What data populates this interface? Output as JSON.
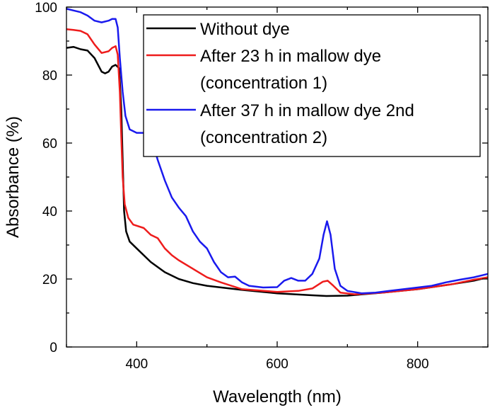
{
  "chart_data": {
    "type": "line",
    "xlabel": "Wavelength (nm)",
    "ylabel": "Absorbance (%)",
    "xlim": [
      300,
      900
    ],
    "ylim": [
      0,
      100
    ],
    "x_ticks": [
      400,
      600,
      800
    ],
    "y_ticks": [
      0,
      20,
      40,
      60,
      80,
      100
    ],
    "grid": false,
    "legend_placement": "top-right",
    "series": [
      {
        "name": "Without dye",
        "color": "#000000",
        "points": [
          [
            300,
            88
          ],
          [
            310,
            88.3
          ],
          [
            320,
            87.6
          ],
          [
            330,
            87.2
          ],
          [
            340,
            85
          ],
          [
            350,
            81
          ],
          [
            355,
            80.5
          ],
          [
            360,
            81
          ],
          [
            365,
            82.5
          ],
          [
            370,
            83
          ],
          [
            375,
            82
          ],
          [
            378,
            70
          ],
          [
            380,
            55
          ],
          [
            382,
            40
          ],
          [
            385,
            34
          ],
          [
            390,
            31
          ],
          [
            400,
            29
          ],
          [
            420,
            25
          ],
          [
            440,
            22
          ],
          [
            460,
            20
          ],
          [
            480,
            18.8
          ],
          [
            500,
            18
          ],
          [
            550,
            16.8
          ],
          [
            600,
            15.8
          ],
          [
            650,
            15.2
          ],
          [
            670,
            15.0
          ],
          [
            700,
            15.1
          ],
          [
            750,
            16
          ],
          [
            800,
            17
          ],
          [
            850,
            18.5
          ],
          [
            880,
            19.5
          ],
          [
            900,
            20.5
          ]
        ]
      },
      {
        "name": "After 23 h in mallow dye\n(concentration 1)",
        "color": "#ee1c1c",
        "points": [
          [
            300,
            93.5
          ],
          [
            310,
            93.3
          ],
          [
            320,
            93
          ],
          [
            330,
            92
          ],
          [
            340,
            89
          ],
          [
            350,
            86.5
          ],
          [
            360,
            87
          ],
          [
            365,
            88
          ],
          [
            370,
            88.5
          ],
          [
            373,
            86
          ],
          [
            376,
            75
          ],
          [
            378,
            62
          ],
          [
            380,
            50
          ],
          [
            383,
            42
          ],
          [
            388,
            38
          ],
          [
            395,
            36
          ],
          [
            410,
            35
          ],
          [
            420,
            33
          ],
          [
            430,
            32
          ],
          [
            440,
            29
          ],
          [
            450,
            27
          ],
          [
            460,
            25.5
          ],
          [
            480,
            23
          ],
          [
            500,
            20.5
          ],
          [
            520,
            19
          ],
          [
            550,
            17
          ],
          [
            600,
            16.2
          ],
          [
            630,
            16.5
          ],
          [
            650,
            17.2
          ],
          [
            665,
            19.2
          ],
          [
            672,
            19.5
          ],
          [
            680,
            18
          ],
          [
            690,
            16
          ],
          [
            710,
            15.5
          ],
          [
            750,
            16
          ],
          [
            800,
            17
          ],
          [
            850,
            18.5
          ],
          [
            880,
            19.8
          ],
          [
            900,
            20.5
          ]
        ]
      },
      {
        "name": "After 37 h in mallow dye 2nd\n(concentration 2)",
        "color": "#1a1aee",
        "points": [
          [
            300,
            99.5
          ],
          [
            310,
            99
          ],
          [
            320,
            98.5
          ],
          [
            330,
            97.5
          ],
          [
            340,
            96
          ],
          [
            350,
            95.5
          ],
          [
            360,
            96
          ],
          [
            365,
            96.5
          ],
          [
            370,
            96.5
          ],
          [
            373,
            94
          ],
          [
            376,
            85
          ],
          [
            380,
            75
          ],
          [
            384,
            68
          ],
          [
            390,
            64
          ],
          [
            400,
            63
          ],
          [
            410,
            63
          ],
          [
            420,
            62
          ],
          [
            430,
            55
          ],
          [
            440,
            49
          ],
          [
            450,
            44
          ],
          [
            460,
            41
          ],
          [
            470,
            38.5
          ],
          [
            480,
            34
          ],
          [
            490,
            31
          ],
          [
            500,
            29
          ],
          [
            510,
            25
          ],
          [
            520,
            22
          ],
          [
            530,
            20.5
          ],
          [
            540,
            20.7
          ],
          [
            550,
            19
          ],
          [
            560,
            18
          ],
          [
            580,
            17.5
          ],
          [
            600,
            17.6
          ],
          [
            610,
            19.5
          ],
          [
            620,
            20.3
          ],
          [
            630,
            19.5
          ],
          [
            640,
            19.5
          ],
          [
            650,
            21.5
          ],
          [
            660,
            26
          ],
          [
            666,
            33
          ],
          [
            671,
            37
          ],
          [
            676,
            33
          ],
          [
            682,
            23
          ],
          [
            690,
            18
          ],
          [
            700,
            16.5
          ],
          [
            720,
            15.8
          ],
          [
            740,
            16
          ],
          [
            760,
            16.5
          ],
          [
            780,
            17
          ],
          [
            800,
            17.5
          ],
          [
            820,
            18
          ],
          [
            840,
            19
          ],
          [
            860,
            19.8
          ],
          [
            880,
            20.5
          ],
          [
            900,
            21.5
          ]
        ]
      }
    ]
  }
}
